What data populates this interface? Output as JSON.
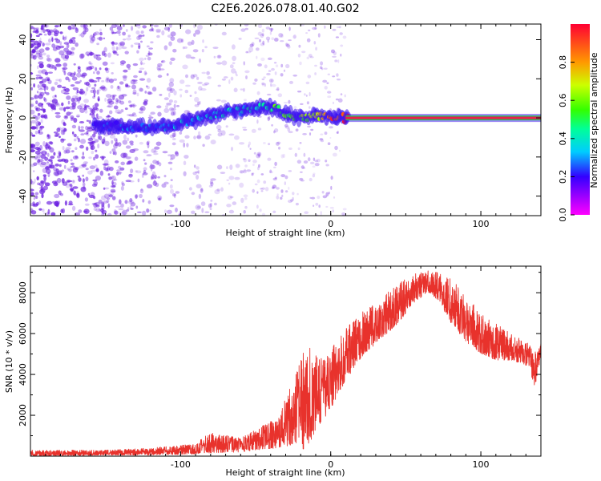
{
  "title": "C2E6.2026.078.01.40.G02",
  "colors": {
    "snr_line": "#e8322c",
    "carrier_band": "#e8204a",
    "carrier_edge": "#22c060",
    "noise_dots": "#6a1ee0"
  },
  "chart_data": [
    {
      "type": "heatmap",
      "xlabel": "Height of straight line (km)",
      "ylabel": "Frequency (Hz)",
      "xlim": [
        -200,
        140
      ],
      "ylim": [
        -50,
        48
      ],
      "x_ticks": [
        -100,
        0,
        100
      ],
      "y_ticks": [
        -40,
        -20,
        0,
        20,
        40
      ],
      "grid": false,
      "colorbar": {
        "label": "Normalized spectral amplitude",
        "range": [
          0,
          1
        ],
        "ticks": [
          "0.0",
          "0.2",
          "0.4",
          "0.6",
          "0.8"
        ],
        "tick_values": [
          0,
          0.2,
          0.4,
          0.6,
          0.8
        ]
      },
      "signal_track": [
        {
          "x": -155,
          "y": -4,
          "amplitude": 0.25
        },
        {
          "x": -130,
          "y": -5,
          "amplitude": 0.3
        },
        {
          "x": -110,
          "y": -4,
          "amplitude": 0.3
        },
        {
          "x": -90,
          "y": -1,
          "amplitude": 0.35
        },
        {
          "x": -70,
          "y": 3,
          "amplitude": 0.35
        },
        {
          "x": -50,
          "y": 5,
          "amplitude": 0.4
        },
        {
          "x": -40,
          "y": 6,
          "amplitude": 0.5
        },
        {
          "x": -30,
          "y": 2,
          "amplitude": 0.55
        },
        {
          "x": -20,
          "y": 0,
          "amplitude": 0.6
        },
        {
          "x": -10,
          "y": 1,
          "amplitude": 0.7
        },
        {
          "x": 0,
          "y": 0,
          "amplitude": 0.85
        },
        {
          "x": 10,
          "y": 0,
          "amplitude": 0.95
        },
        {
          "x": 140,
          "y": 0,
          "amplitude": 0.95
        }
      ],
      "carrier_band": {
        "x_start": 10,
        "x_end": 140,
        "frequency": 0,
        "amplitude": 0.95
      }
    },
    {
      "type": "line",
      "xlabel": "Height of straight line (km)",
      "ylabel": "SNR (10 * v/v)",
      "xlim": [
        -200,
        140
      ],
      "ylim": [
        0,
        9300
      ],
      "x_ticks": [
        -100,
        0,
        100
      ],
      "y_ticks": [
        2000,
        4000,
        6000,
        8000
      ],
      "grid": false,
      "envelope": [
        {
          "x": -200,
          "low": 0,
          "high": 300
        },
        {
          "x": -150,
          "low": 50,
          "high": 300
        },
        {
          "x": -120,
          "low": 50,
          "high": 400
        },
        {
          "x": -90,
          "low": 100,
          "high": 600
        },
        {
          "x": -80,
          "low": 150,
          "high": 1200
        },
        {
          "x": -60,
          "low": 200,
          "high": 900
        },
        {
          "x": -50,
          "low": 300,
          "high": 1300
        },
        {
          "x": -35,
          "low": 400,
          "high": 1900
        },
        {
          "x": -28,
          "low": 500,
          "high": 3300
        },
        {
          "x": -22,
          "low": 600,
          "high": 4200
        },
        {
          "x": -18,
          "low": 300,
          "high": 5400
        },
        {
          "x": -13,
          "low": 800,
          "high": 5300
        },
        {
          "x": -8,
          "low": 1500,
          "high": 4700
        },
        {
          "x": 0,
          "low": 2300,
          "high": 5200
        },
        {
          "x": 10,
          "low": 3700,
          "high": 6300
        },
        {
          "x": 20,
          "low": 4800,
          "high": 7000
        },
        {
          "x": 30,
          "low": 5500,
          "high": 7500
        },
        {
          "x": 45,
          "low": 6500,
          "high": 8500
        },
        {
          "x": 55,
          "low": 7500,
          "high": 8900
        },
        {
          "x": 65,
          "low": 8000,
          "high": 9100
        },
        {
          "x": 72,
          "low": 7600,
          "high": 9000
        },
        {
          "x": 80,
          "low": 6500,
          "high": 8700
        },
        {
          "x": 90,
          "low": 5600,
          "high": 8000
        },
        {
          "x": 100,
          "low": 5000,
          "high": 7000
        },
        {
          "x": 110,
          "low": 4700,
          "high": 6500
        },
        {
          "x": 120,
          "low": 4700,
          "high": 6000
        },
        {
          "x": 132,
          "low": 4400,
          "high": 5500
        },
        {
          "x": 136,
          "low": 3300,
          "high": 5100
        },
        {
          "x": 140,
          "low": 4800,
          "high": 5700
        }
      ]
    }
  ]
}
